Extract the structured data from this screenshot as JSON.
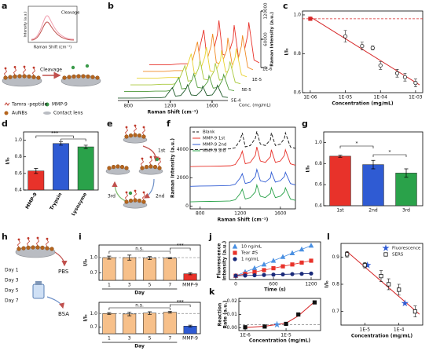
{
  "panel_labels": [
    "a",
    "b",
    "c",
    "d",
    "e",
    "f",
    "g",
    "h",
    "i",
    "j",
    "k",
    "l"
  ],
  "schematic_a": {
    "inset_title": "Cleavage",
    "inset_ylabel": "Intensity (a.u.)",
    "inset_xlabel": "Raman Shift (cm⁻¹)",
    "arrow_label": "Cleavage",
    "legend": [
      "Tamra -peptide",
      "MMP-9",
      "AuNBs",
      "Contact lens"
    ]
  },
  "schematic_e": {
    "steps": [
      "1st",
      "2nd",
      "3rd"
    ]
  },
  "schematic_h": {
    "days": [
      "Day 1",
      "Day 3",
      "Day 5",
      "Day 7"
    ],
    "media": [
      "PBS",
      "BSA"
    ]
  },
  "chart_data": [
    {
      "type": "waterfall",
      "xlabel": "Raman Shift (cm⁻¹)",
      "ylabel": "Raman Intensity (a.u.)",
      "depth_label": "Conc. (mg/mL)",
      "depth_ticks": [
        "1E-6",
        "1E-5",
        "5E-5",
        "5E-4"
      ],
      "xlim": [
        700,
        1750
      ],
      "xticks": [
        800,
        1200,
        1600
      ],
      "ylim": [
        0,
        120000
      ],
      "yticks": [
        0,
        60000,
        120000
      ],
      "x": [
        700,
        800,
        900,
        1000,
        1100,
        1150,
        1200,
        1220,
        1250,
        1300,
        1350,
        1365,
        1400,
        1450,
        1500,
        1510,
        1550,
        1600,
        1640,
        1650,
        1700,
        1750
      ],
      "series": [
        {
          "color": "#e8322a",
          "values": [
            6000,
            6000,
            6000,
            8000,
            8000,
            12000,
            60000,
            80000,
            20000,
            24000,
            70000,
            100000,
            28000,
            24000,
            60000,
            90000,
            24000,
            28000,
            70000,
            96000,
            16000,
            10000
          ]
        },
        {
          "color": "#f08a24",
          "values": [
            5100,
            5100,
            5100,
            6800,
            6800,
            10200,
            51000,
            68000,
            17000,
            20400,
            59500,
            85000,
            23800,
            20400,
            51000,
            76500,
            20400,
            23800,
            59500,
            81600,
            13600,
            8500
          ]
        },
        {
          "color": "#e8d230",
          "values": [
            4200,
            4200,
            4200,
            5600,
            5600,
            8400,
            42000,
            56000,
            14000,
            16800,
            49000,
            70000,
            19600,
            16800,
            42000,
            63000,
            16800,
            19600,
            49000,
            67200,
            11200,
            7000
          ]
        },
        {
          "color": "#a8c83a",
          "values": [
            3300,
            3300,
            3300,
            4400,
            4400,
            6600,
            33000,
            44000,
            11000,
            13200,
            38500,
            55000,
            15400,
            13200,
            33000,
            49500,
            13200,
            15400,
            38500,
            52800,
            8800,
            5500
          ]
        },
        {
          "color": "#4f9a3a",
          "values": [
            2400,
            2400,
            2400,
            3200,
            3200,
            4800,
            24000,
            32000,
            8000,
            9600,
            28000,
            40000,
            11200,
            9600,
            24000,
            36000,
            9600,
            11200,
            28000,
            38400,
            6400,
            4000
          ]
        },
        {
          "color": "#1f5a2a",
          "values": [
            1800,
            1800,
            1800,
            2400,
            2400,
            3600,
            18000,
            24000,
            6000,
            7200,
            21000,
            30000,
            8400,
            7200,
            18000,
            27000,
            7200,
            8400,
            21000,
            28800,
            4800,
            3000
          ]
        }
      ]
    },
    {
      "type": "scatter",
      "xlabel": "Concentration (mg/mL)",
      "ylabel": "I/I₀",
      "xlog": true,
      "xlim": [
        6e-07,
        0.0016
      ],
      "xticks": [
        {
          "value": 1e-06,
          "label": "1E-06"
        },
        {
          "value": 1e-05,
          "label": "1E-05"
        },
        {
          "value": 0.0001,
          "label": "1E-04"
        },
        {
          "value": 0.001,
          "label": "1E-03"
        }
      ],
      "ylim": [
        0.6,
        1.02
      ],
      "yticks": [
        0.6,
        0.8,
        {
          "value": 1,
          "label": "1.0"
        }
      ],
      "reference_line": 0.98,
      "reference_color": "#d62728",
      "fit": {
        "x": [
          1e-06,
          0.0013
        ],
        "y": [
          0.99,
          0.64
        ]
      },
      "fit_color": "#d62728",
      "series": [
        {
          "color": "#222222",
          "marker": "circle",
          "filled": false,
          "x": [
            1e-05,
            3e-05,
            6e-05,
            0.0001,
            0.0003,
            0.0005,
            0.001
          ],
          "values": [
            0.89,
            0.84,
            0.83,
            0.74,
            0.7,
            0.68,
            0.65
          ],
          "errors": [
            0.03,
            0.02,
            0.01,
            0.02,
            0.02,
            0.02,
            0.02
          ]
        },
        {
          "color": "#d62728",
          "marker": "square",
          "filled": true,
          "x": [
            1e-06
          ],
          "values": [
            0.98
          ],
          "errors": [
            0.005
          ]
        }
      ]
    },
    {
      "type": "bar",
      "ylabel": "I/I₀",
      "categories": [
        "MMP-9",
        "Trypsin",
        "Lysozyme"
      ],
      "values": [
        0.63,
        0.96,
        0.92
      ],
      "errors": [
        0.03,
        0.02,
        0.02
      ],
      "colors": [
        "#e8322a",
        "#2f5bd3",
        "#2aa24a"
      ],
      "ylim": [
        0.4,
        1.1
      ],
      "yticks": [
        0.4,
        0.6,
        0.8,
        {
          "value": 1,
          "label": "1.0"
        }
      ],
      "annotations": [
        "***"
      ]
    },
    {
      "type": "line",
      "xlabel": "Raman Shift (cm⁻¹)",
      "ylabel": "Raman Intensity (a.u.)",
      "xlim": [
        700,
        1750
      ],
      "xticks": [
        800,
        1200,
        1600
      ],
      "ylim": [
        -200,
        5600
      ],
      "yticks": [
        0,
        2000,
        4000
      ],
      "x": [
        700,
        800,
        900,
        1000,
        1100,
        1150,
        1200,
        1220,
        1250,
        1300,
        1350,
        1365,
        1400,
        1450,
        1500,
        1510,
        1550,
        1600,
        1640,
        1650,
        1700,
        1750
      ],
      "series": [
        {
          "name": "Blank",
          "color": "#111111",
          "style": "dashed",
          "values": [
            4000,
            4020,
            4030,
            4040,
            4060,
            4150,
            4700,
            5200,
            4200,
            4300,
            4800,
            5300,
            4400,
            4300,
            4700,
            5200,
            4300,
            4400,
            4800,
            5200,
            4200,
            4100
          ]
        },
        {
          "name": "MMP-9 1st",
          "color": "#e8322a",
          "values": [
            2800,
            2820,
            2830,
            2840,
            2860,
            2950,
            3500,
            3900,
            3000,
            3100,
            3600,
            4200,
            3200,
            3100,
            3500,
            4000,
            3100,
            3200,
            3600,
            4000,
            3000,
            2900
          ]
        },
        {
          "name": "MMP-9 2nd",
          "color": "#2f5bd3",
          "values": [
            1400,
            1420,
            1430,
            1440,
            1460,
            1550,
            2000,
            2300,
            1600,
            1700,
            2100,
            2600,
            1800,
            1700,
            2000,
            2400,
            1700,
            1800,
            2100,
            2400,
            1600,
            1500
          ]
        },
        {
          "name": "MMP-9 3rd",
          "color": "#2aa24a",
          "values": [
            300,
            320,
            330,
            340,
            360,
            450,
            900,
            1200,
            500,
            600,
            1000,
            1500,
            700,
            600,
            900,
            1300,
            600,
            700,
            1000,
            1300,
            500,
            400
          ]
        }
      ]
    },
    {
      "type": "bar",
      "ylabel": "I/I₀",
      "categories": [
        "1st",
        "2nd",
        "3rd"
      ],
      "values": [
        0.87,
        0.79,
        0.71
      ],
      "errors": [
        0.01,
        0.04,
        0.04
      ],
      "colors": [
        "#e8322a",
        "#2f5bd3",
        "#2aa24a"
      ],
      "ylim": [
        0.4,
        1.1
      ],
      "yticks": [
        0.4,
        0.6,
        0.8,
        {
          "value": 1,
          "label": "1.0"
        }
      ],
      "annotations": [
        "*",
        "*"
      ]
    },
    {
      "type": "bar",
      "xlabel": "Day",
      "ylabel": "I/I₀",
      "categories": [
        "1",
        "3",
        "5",
        "7",
        "MMP-9"
      ],
      "values": [
        1.0,
        1.0,
        0.99,
        0.99,
        0.68
      ],
      "errors": [
        0.03,
        0.05,
        0.03,
        0.01,
        0.02
      ],
      "colors": [
        "#f7c08a",
        "#f7c08a",
        "#f7c08a",
        "#f7c08a",
        "#e8322a"
      ],
      "ylim": [
        0.55,
        1.25
      ],
      "yticks": [
        0.7,
        {
          "value": 1,
          "label": "1.0"
        }
      ],
      "reference_line": 1,
      "reference_color": "#888888",
      "annotations": [
        "n.s.",
        "***"
      ]
    },
    {
      "type": "bar",
      "xlabel": "Day",
      "ylabel": "I/I₀",
      "categories": [
        "1",
        "3",
        "5",
        "7",
        "MMP-9"
      ],
      "values": [
        1.0,
        0.99,
        1.01,
        1.03,
        0.72
      ],
      "errors": [
        0.02,
        0.04,
        0.03,
        0.02,
        0.02
      ],
      "colors": [
        "#f7c08a",
        "#f7c08a",
        "#f7c08a",
        "#f7c08a",
        "#2f5bd3"
      ],
      "ylim": [
        0.55,
        1.25
      ],
      "yticks": [
        0.7,
        {
          "value": 1,
          "label": "1.0"
        }
      ],
      "reference_line": 1,
      "reference_color": "#888888",
      "annotations": [
        "n.s.",
        "***"
      ]
    },
    {
      "type": "scatter",
      "xlabel": "Time (s)",
      "ylabel": [
        "Fluorescence",
        "Intensity (a.u.)"
      ],
      "xlim": [
        -100,
        1350
      ],
      "xticks": [
        0,
        600,
        1200
      ],
      "ylim": [
        0,
        10
      ],
      "connect": true,
      "series": [
        {
          "name": "10 ng/mL",
          "color": "#4a90e2",
          "marker": "triangle",
          "x": [
            0,
            150,
            300,
            450,
            600,
            750,
            900,
            1050,
            1200
          ],
          "values": [
            1,
            2,
            3,
            4,
            5,
            6,
            7,
            8,
            9
          ]
        },
        {
          "name": "Tear #5",
          "color": "#e8322a",
          "marker": "square",
          "x": [
            0,
            150,
            300,
            450,
            600,
            750,
            900,
            1050,
            1200
          ],
          "values": [
            1,
            1.5,
            2,
            2.5,
            3,
            3.5,
            4,
            4.5,
            5
          ]
        },
        {
          "name": "1 ng/mL",
          "color": "#1a2a7a",
          "marker": "circle",
          "x": [
            0,
            150,
            300,
            450,
            600,
            750,
            900,
            1050,
            1200
          ],
          "values": [
            1,
            1.07,
            1.15,
            1.22,
            1.3,
            1.37,
            1.45,
            1.52,
            1.6
          ]
        }
      ]
    },
    {
      "type": "scatter",
      "xlabel": "Concentration (mg/mL)",
      "ylabel": [
        "Reaction",
        "Rate (a.u.)"
      ],
      "xlog": true,
      "xlim": [
        7e-07,
        7e-05
      ],
      "xticks": [
        {
          "value": 1e-06,
          "label": "1E-6"
        },
        {
          "value": 1e-05,
          "label": "1E-5"
        }
      ],
      "ylim": [
        -0.002,
        0.022
      ],
      "yticks": [
        {
          "value": 0,
          "label": "0.00"
        },
        0.01,
        0.02
      ],
      "reference_line": 0.0025,
      "reference_color": "#666666",
      "fit": {
        "x": [
          1e-06,
          3e-06,
          1e-05,
          2e-05,
          5e-05
        ],
        "y": [
          0.0003,
          0.0012,
          0.0035,
          0.009,
          0.0195
        ]
      },
      "fit_color": "#d62728",
      "series": [
        {
          "color": "#111111",
          "marker": "square",
          "x": [
            1e-06,
            3e-06,
            1e-05,
            2e-05,
            5e-05
          ],
          "values": [
            0.0005,
            0.001,
            0.003,
            0.01,
            0.019
          ]
        },
        {
          "color": "#4a90e2",
          "marker": "star",
          "x": [
            6e-06
          ],
          "values": [
            0.0025
          ]
        }
      ]
    },
    {
      "type": "scatter",
      "ylabel": "I/I₀",
      "xlabel": "Concentration (mg/mL)",
      "xlog": true,
      "xlim": [
        2e-06,
        0.0005
      ],
      "xticks": [
        {
          "value": 1e-05,
          "label": "1E-5"
        },
        {
          "value": 0.0001,
          "label": "1E-4"
        }
      ],
      "ylim": [
        0.65,
        0.95
      ],
      "yticks": [
        0.7,
        0.8,
        0.9
      ],
      "fit": {
        "x": [
          3e-06,
          0.0004
        ],
        "y": [
          0.92,
          0.69
        ]
      },
      "fit_color": "#d62728",
      "series": [
        {
          "name": "Fluorescence",
          "color": "#2f5bd3",
          "marker": "star",
          "x": [
            1.2e-05,
            0.00015
          ],
          "values": [
            0.87,
            0.73
          ]
        },
        {
          "name": "SERS",
          "color": "#111111",
          "marker": "square",
          "filled": false,
          "x": [
            3e-06,
            1e-05,
            3e-05,
            5e-05,
            0.0001,
            0.0003
          ],
          "values": [
            0.91,
            0.87,
            0.83,
            0.8,
            0.78,
            0.7
          ],
          "errors": [
            0.01,
            0.01,
            0.02,
            0.02,
            0.02,
            0.02
          ]
        }
      ]
    }
  ]
}
